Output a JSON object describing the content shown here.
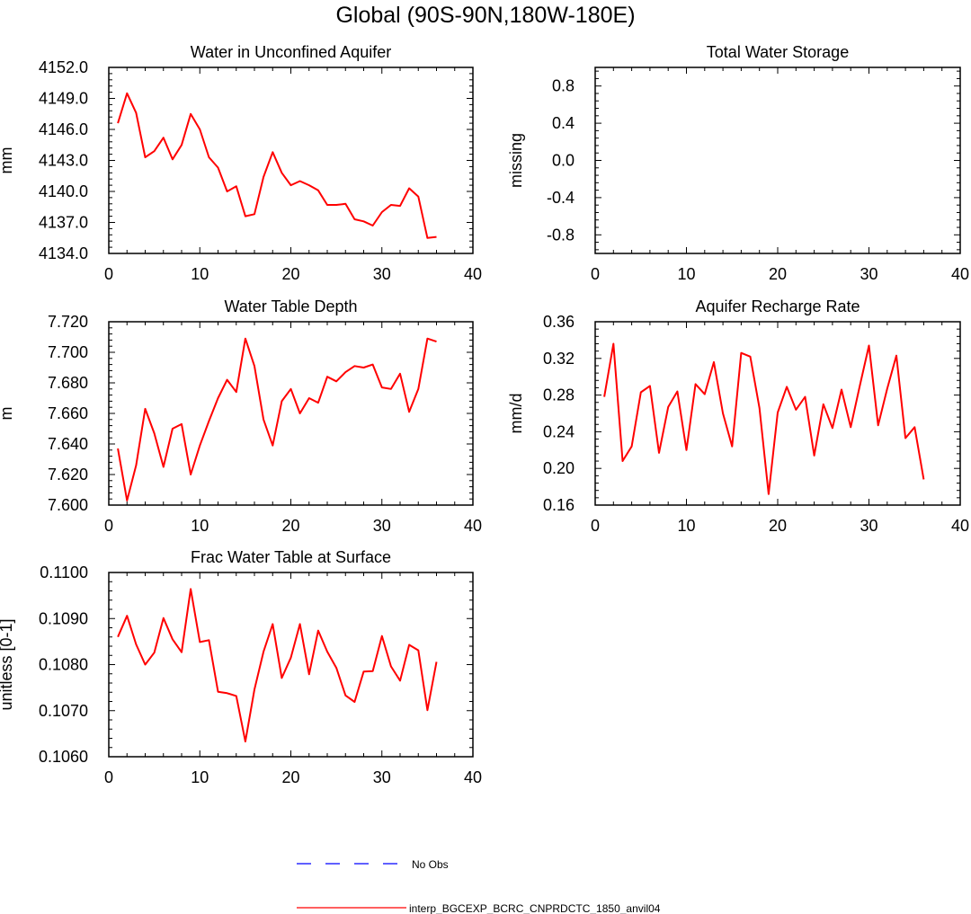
{
  "title": "Global (90S-90N,180W-180E)",
  "colors": {
    "model": "#ff0000",
    "obs": "#0000ff",
    "axis": "#000000"
  },
  "legend": {
    "obs_label": "No Obs",
    "model_label": "interp_BGCEXP_BCRC_CNPRDCTC_1850_anvil04"
  },
  "chart_data": [
    {
      "type": "line",
      "title": "Water in Unconfined Aquifer",
      "ylabel": "mm",
      "xlim": [
        0,
        40
      ],
      "ylim": [
        4134.0,
        4152.0
      ],
      "xticks": [
        "0",
        "10",
        "20",
        "30",
        "40"
      ],
      "yticks": [
        "4134.0",
        "4137.0",
        "4140.0",
        "4143.0",
        "4146.0",
        "4149.0",
        "4152.0"
      ],
      "x": [
        1,
        2,
        3,
        4,
        5,
        6,
        7,
        8,
        9,
        10,
        11,
        12,
        13,
        14,
        15,
        16,
        17,
        18,
        19,
        20,
        21,
        22,
        23,
        24,
        25,
        26,
        27,
        28,
        29,
        30,
        31,
        32,
        33,
        34,
        35,
        36
      ],
      "values": [
        4146.6,
        4149.5,
        4147.6,
        4143.3,
        4143.9,
        4145.2,
        4143.1,
        4144.5,
        4147.5,
        4146.0,
        4143.3,
        4142.3,
        4140.0,
        4140.5,
        4137.6,
        4137.8,
        4141.4,
        4143.8,
        4141.8,
        4140.6,
        4141.0,
        4140.6,
        4140.1,
        4138.7,
        4138.7,
        4138.8,
        4137.3,
        4137.1,
        4136.7,
        4138.0,
        4138.7,
        4138.6,
        4140.3,
        4139.5,
        4135.5,
        4135.6
      ]
    },
    {
      "type": "line",
      "title": "Total Water Storage",
      "ylabel": "missing",
      "xlim": [
        0,
        40
      ],
      "ylim": [
        -1.0,
        1.0
      ],
      "xticks": [
        "0",
        "10",
        "20",
        "30",
        "40"
      ],
      "yticks": [
        "-0.8",
        "-0.4",
        "0.0",
        "0.4",
        "0.8"
      ],
      "x": [],
      "values": []
    },
    {
      "type": "line",
      "title": "Water Table Depth",
      "ylabel": "m",
      "xlim": [
        0,
        40
      ],
      "ylim": [
        7.6,
        7.72
      ],
      "xticks": [
        "0",
        "10",
        "20",
        "30",
        "40"
      ],
      "yticks": [
        "7.600",
        "7.620",
        "7.640",
        "7.660",
        "7.680",
        "7.700",
        "7.720"
      ],
      "x": [
        1,
        2,
        3,
        4,
        5,
        6,
        7,
        8,
        9,
        10,
        11,
        12,
        13,
        14,
        15,
        16,
        17,
        18,
        19,
        20,
        21,
        22,
        23,
        24,
        25,
        26,
        27,
        28,
        29,
        30,
        31,
        32,
        33,
        34,
        35,
        36
      ],
      "values": [
        7.637,
        7.603,
        7.626,
        7.663,
        7.647,
        7.625,
        7.65,
        7.653,
        7.62,
        7.639,
        7.655,
        7.67,
        7.682,
        7.674,
        7.709,
        7.691,
        7.656,
        7.639,
        7.668,
        7.676,
        7.66,
        7.67,
        7.667,
        7.684,
        7.681,
        7.687,
        7.691,
        7.69,
        7.692,
        7.677,
        7.676,
        7.686,
        7.661,
        7.676,
        7.709,
        7.707
      ]
    },
    {
      "type": "line",
      "title": "Aquifer Recharge Rate",
      "ylabel": "mm/d",
      "xlim": [
        0,
        40
      ],
      "ylim": [
        0.16,
        0.36
      ],
      "xticks": [
        "0",
        "10",
        "20",
        "30",
        "40"
      ],
      "yticks": [
        "0.16",
        "0.20",
        "0.24",
        "0.28",
        "0.32",
        "0.36"
      ],
      "x": [
        1,
        2,
        3,
        4,
        5,
        6,
        7,
        8,
        9,
        10,
        11,
        12,
        13,
        14,
        15,
        16,
        17,
        18,
        19,
        20,
        21,
        22,
        23,
        24,
        25,
        26,
        27,
        28,
        29,
        30,
        31,
        32,
        33,
        34,
        35,
        36
      ],
      "values": [
        0.278,
        0.336,
        0.208,
        0.224,
        0.283,
        0.29,
        0.217,
        0.267,
        0.284,
        0.22,
        0.292,
        0.281,
        0.316,
        0.26,
        0.224,
        0.326,
        0.322,
        0.266,
        0.172,
        0.261,
        0.289,
        0.264,
        0.278,
        0.214,
        0.27,
        0.244,
        0.286,
        0.245,
        0.29,
        0.334,
        0.247,
        0.287,
        0.323,
        0.233,
        0.245,
        0.188
      ]
    },
    {
      "type": "line",
      "title": "Frac Water Table at Surface",
      "ylabel": "unitless [0-1]",
      "xlim": [
        0,
        40
      ],
      "ylim": [
        0.106,
        0.11
      ],
      "xticks": [
        "0",
        "10",
        "20",
        "30",
        "40"
      ],
      "yticks": [
        "0.1060",
        "0.1070",
        "0.1080",
        "0.1090",
        "0.1100"
      ],
      "x": [
        1,
        2,
        3,
        4,
        5,
        6,
        7,
        8,
        9,
        10,
        11,
        12,
        13,
        14,
        15,
        16,
        17,
        18,
        19,
        20,
        21,
        22,
        23,
        24,
        25,
        26,
        27,
        28,
        29,
        30,
        31,
        32,
        33,
        34,
        35,
        36
      ],
      "values": [
        0.1086,
        0.10906,
        0.10844,
        0.108,
        0.10826,
        0.10901,
        0.10855,
        0.10827,
        0.10964,
        0.10849,
        0.10853,
        0.10741,
        0.10738,
        0.10732,
        0.10633,
        0.10746,
        0.10828,
        0.10888,
        0.10771,
        0.10815,
        0.10888,
        0.10779,
        0.10874,
        0.10828,
        0.10793,
        0.10733,
        0.10719,
        0.10785,
        0.10786,
        0.10862,
        0.10796,
        0.10765,
        0.10843,
        0.10831,
        0.10701,
        0.10806
      ]
    }
  ]
}
